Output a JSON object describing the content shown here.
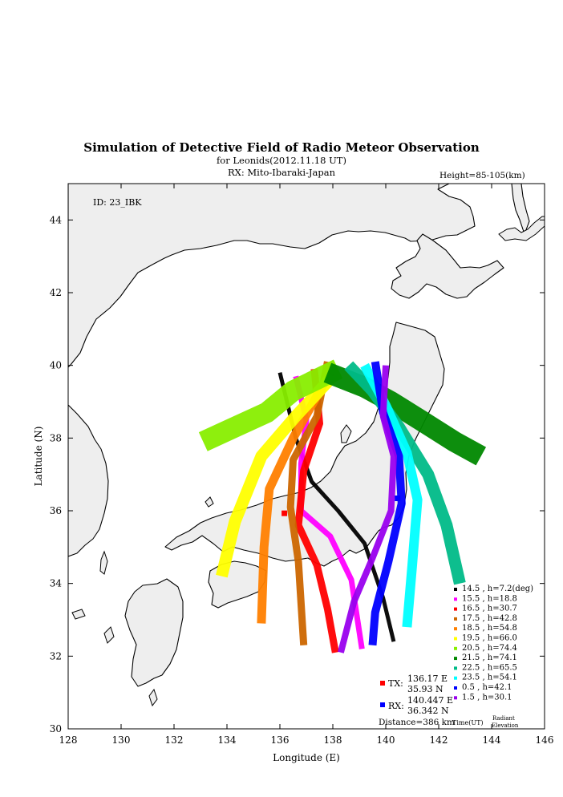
{
  "chart_data": {
    "type": "scatter",
    "title": "Simulation of Detective Field of Radio Meteor Observation",
    "subtitle_lines": [
      "for Leonids(2012.11.18 UT)",
      "RX: Mito-Ibaraki-Japan"
    ],
    "height_note": "Height=85-105(km)",
    "id_label": "ID: 23_IBK",
    "xlabel": "Longitude (E)",
    "ylabel": "Latitude (N)",
    "xlim": [
      128,
      146
    ],
    "ylim": [
      30,
      45
    ],
    "xticks": [
      "128",
      "130",
      "132",
      "134",
      "136",
      "138",
      "140",
      "142",
      "144",
      "146"
    ],
    "yticks": [
      "30",
      "32",
      "34",
      "36",
      "38",
      "40",
      "42",
      "44"
    ],
    "grid": false,
    "legend_position": "bottom-right",
    "legend_footer": [
      "Time(UT)",
      "Radiant",
      "Elevation"
    ],
    "tx": {
      "label": "TX:",
      "lon_text": "136.17 E",
      "lat_text": "35.93 N",
      "lon": 136.17,
      "lat": 35.93,
      "color": "#ff0000"
    },
    "rx": {
      "label": "RX:",
      "lon_text": "140.447 E",
      "lat_text": "36.342 N",
      "lon": 140.447,
      "lat": 36.342,
      "color": "#0000ff"
    },
    "distance": "Distance=386 km",
    "series": [
      {
        "name": "14.5 ,  h=7.2(deg)",
        "color": "#000000",
        "width": 5,
        "path": [
          [
            136.0,
            39.8
          ],
          [
            136.6,
            38.0
          ],
          [
            137.2,
            36.8
          ],
          [
            138.2,
            36.0
          ],
          [
            139.2,
            35.1
          ],
          [
            139.9,
            33.6
          ],
          [
            140.3,
            32.4
          ]
        ]
      },
      {
        "name": "15.5 ,  h=18.8",
        "color": "#ff00ff",
        "width": 7,
        "path": [
          [
            136.6,
            39.7
          ],
          [
            137.0,
            38.5
          ],
          [
            136.8,
            37.3
          ],
          [
            136.8,
            36.0
          ],
          [
            137.9,
            35.3
          ],
          [
            138.7,
            34.1
          ],
          [
            139.1,
            32.2
          ]
        ]
      },
      {
        "name": "16.5 ,  h=30.7",
        "color": "#ff0000",
        "width": 9,
        "path": [
          [
            137.3,
            39.9
          ],
          [
            137.5,
            38.4
          ],
          [
            136.9,
            37.1
          ],
          [
            136.7,
            35.6
          ],
          [
            137.4,
            34.5
          ],
          [
            137.8,
            33.3
          ],
          [
            138.1,
            32.1
          ]
        ]
      },
      {
        "name": "17.5 ,  h=42.8",
        "color": "#cc6600",
        "width": 9,
        "path": [
          [
            137.8,
            40.1
          ],
          [
            137.4,
            38.6
          ],
          [
            136.5,
            37.4
          ],
          [
            136.4,
            36.1
          ],
          [
            136.7,
            34.6
          ],
          [
            136.9,
            32.3
          ]
        ]
      },
      {
        "name": "18.5 ,  h=54.8",
        "color": "#ff8000",
        "width": 11,
        "path": [
          [
            137.9,
            39.8
          ],
          [
            136.5,
            38.0
          ],
          [
            135.6,
            36.6
          ],
          [
            135.4,
            35.0
          ],
          [
            135.3,
            32.9
          ]
        ]
      },
      {
        "name": "19.5 ,  h=66.0",
        "color": "#ffff00",
        "width": 15,
        "path": [
          [
            138.0,
            39.7
          ],
          [
            136.6,
            38.6
          ],
          [
            135.3,
            37.5
          ],
          [
            134.3,
            35.7
          ],
          [
            133.8,
            34.2
          ]
        ]
      },
      {
        "name": "20.5 ,  h=74.4",
        "color": "#88ee00",
        "width": 26,
        "path": [
          [
            138.2,
            39.9
          ],
          [
            136.5,
            39.3
          ],
          [
            135.5,
            38.7
          ],
          [
            134.3,
            38.3
          ],
          [
            133.1,
            37.9
          ]
        ]
      },
      {
        "name": "21.5 ,  h=74.1",
        "color": "#008800",
        "width": 26,
        "path": [
          [
            137.8,
            39.8
          ],
          [
            139.2,
            39.4
          ],
          [
            140.2,
            39.0
          ],
          [
            141.3,
            38.5
          ],
          [
            142.6,
            37.9
          ],
          [
            143.6,
            37.5
          ]
        ]
      },
      {
        "name": "22.5 ,  h=65.5",
        "color": "#00bb88",
        "width": 15,
        "path": [
          [
            138.6,
            40.0
          ],
          [
            139.5,
            39.3
          ],
          [
            140.5,
            38.3
          ],
          [
            141.6,
            37.0
          ],
          [
            142.3,
            35.6
          ],
          [
            142.8,
            34.0
          ]
        ]
      },
      {
        "name": "23.5 ,  h=54.1",
        "color": "#00ffff",
        "width": 12,
        "path": [
          [
            139.2,
            40.0
          ],
          [
            140.0,
            38.9
          ],
          [
            140.8,
            37.6
          ],
          [
            141.2,
            36.3
          ],
          [
            141.0,
            34.5
          ],
          [
            140.8,
            32.8
          ]
        ]
      },
      {
        "name": "0.5 ,  h=42.1",
        "color": "#0000ff",
        "width": 10,
        "path": [
          [
            139.6,
            40.1
          ],
          [
            139.9,
            38.7
          ],
          [
            140.5,
            37.5
          ],
          [
            140.6,
            36.2
          ],
          [
            140.1,
            34.6
          ],
          [
            139.6,
            33.2
          ],
          [
            139.5,
            32.3
          ]
        ]
      },
      {
        "name": "1.5 ,  h=30.1",
        "color": "#9900ee",
        "width": 8,
        "path": [
          [
            140.0,
            40.0
          ],
          [
            139.9,
            38.6
          ],
          [
            140.3,
            37.5
          ],
          [
            140.2,
            36.0
          ],
          [
            139.5,
            34.7
          ],
          [
            138.8,
            33.5
          ],
          [
            138.3,
            32.1
          ]
        ]
      }
    ]
  }
}
